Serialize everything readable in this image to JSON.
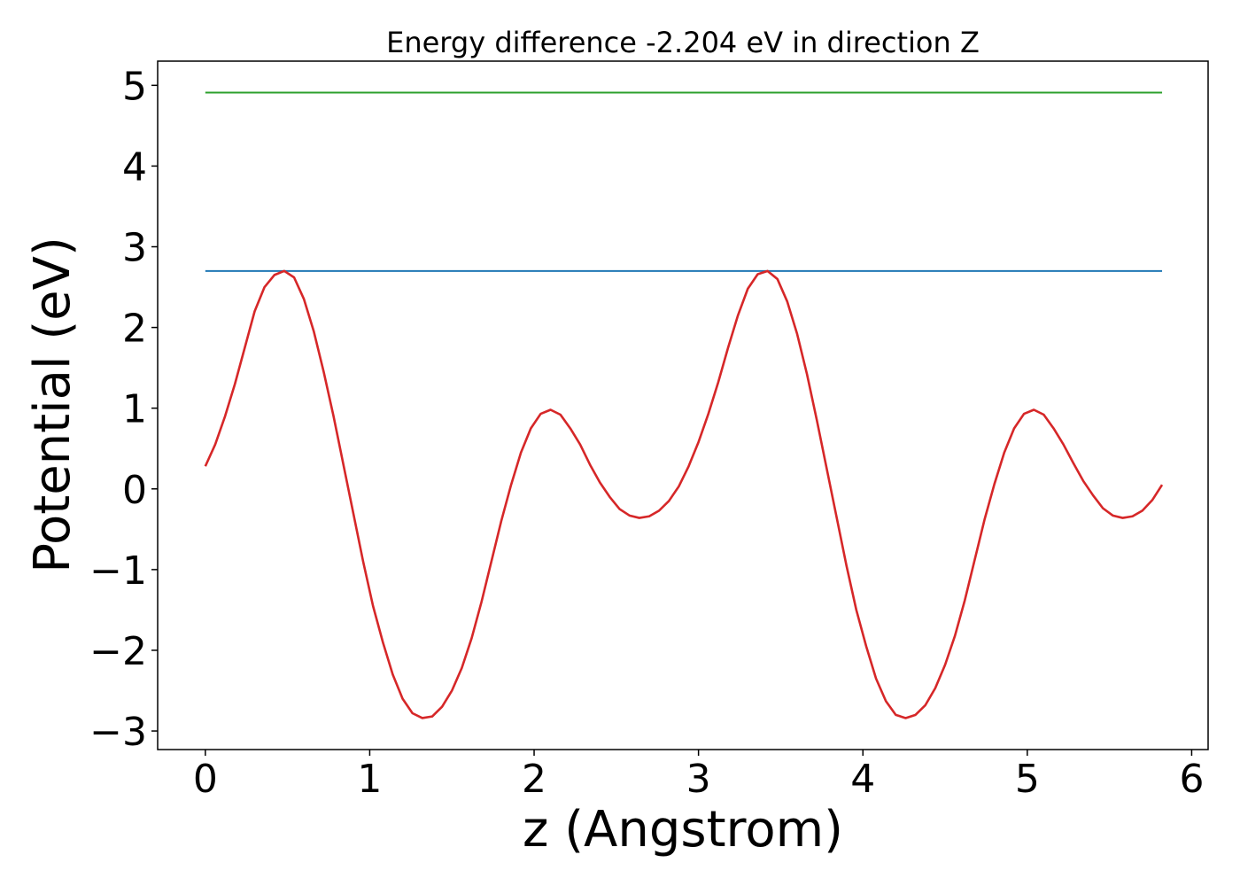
{
  "chart_data": {
    "type": "line",
    "title": "Energy difference -2.204 eV in direction Z",
    "xlabel": "z (Angstrom)",
    "ylabel": "Potential (eV)",
    "xlim": [
      -0.29,
      6.1
    ],
    "ylim": [
      -3.23,
      5.3
    ],
    "xticks": [
      0,
      1,
      2,
      3,
      4,
      5,
      6
    ],
    "xtick_labels": [
      "0",
      "1",
      "2",
      "3",
      "4",
      "5",
      "6"
    ],
    "yticks": [
      -3,
      -2,
      -1,
      0,
      1,
      2,
      3,
      4,
      5
    ],
    "ytick_labels": [
      "−3",
      "−2",
      "−1",
      "0",
      "1",
      "2",
      "3",
      "4",
      "5"
    ],
    "grid": false,
    "series": [
      {
        "color": "#2ca02c",
        "x": [
          0,
          5.82
        ],
        "y": [
          4.91,
          4.91
        ]
      },
      {
        "color": "#1f77b4",
        "x": [
          0,
          5.82
        ],
        "y": [
          2.7,
          2.7
        ]
      },
      {
        "color": "#d62728",
        "x": [
          0.0,
          0.06,
          0.12,
          0.18,
          0.24,
          0.3,
          0.36,
          0.42,
          0.48,
          0.54,
          0.6,
          0.66,
          0.72,
          0.78,
          0.84,
          0.9,
          0.96,
          1.02,
          1.08,
          1.14,
          1.2,
          1.26,
          1.32,
          1.38,
          1.44,
          1.5,
          1.56,
          1.62,
          1.68,
          1.74,
          1.8,
          1.86,
          1.92,
          1.98,
          2.04,
          2.1,
          2.16,
          2.22,
          2.28,
          2.34,
          2.4,
          2.46,
          2.52,
          2.58,
          2.64,
          2.7,
          2.76,
          2.82,
          2.88,
          2.94,
          3.0,
          3.06,
          3.12,
          3.18,
          3.24,
          3.3,
          3.36,
          3.42,
          3.48,
          3.54,
          3.6,
          3.66,
          3.72,
          3.78,
          3.84,
          3.9,
          3.96,
          4.02,
          4.08,
          4.14,
          4.2,
          4.26,
          4.32,
          4.38,
          4.44,
          4.5,
          4.56,
          4.62,
          4.68,
          4.74,
          4.8,
          4.86,
          4.92,
          4.98,
          5.04,
          5.1,
          5.16,
          5.22,
          5.28,
          5.34,
          5.4,
          5.46,
          5.52,
          5.58,
          5.64,
          5.7,
          5.76,
          5.82
        ],
        "y": [
          0.28,
          0.55,
          0.9,
          1.3,
          1.75,
          2.2,
          2.5,
          2.65,
          2.7,
          2.62,
          2.35,
          1.95,
          1.45,
          0.9,
          0.3,
          -0.3,
          -0.9,
          -1.45,
          -1.9,
          -2.3,
          -2.6,
          -2.78,
          -2.84,
          -2.82,
          -2.7,
          -2.5,
          -2.22,
          -1.85,
          -1.4,
          -0.9,
          -0.4,
          0.05,
          0.45,
          0.75,
          0.93,
          0.98,
          0.92,
          0.75,
          0.55,
          0.3,
          0.08,
          -0.1,
          -0.25,
          -0.33,
          -0.36,
          -0.34,
          -0.27,
          -0.15,
          0.03,
          0.28,
          0.58,
          0.93,
          1.32,
          1.75,
          2.15,
          2.48,
          2.66,
          2.7,
          2.6,
          2.32,
          1.92,
          1.42,
          0.85,
          0.25,
          -0.35,
          -0.95,
          -1.5,
          -1.95,
          -2.35,
          -2.63,
          -2.8,
          -2.84,
          -2.8,
          -2.68,
          -2.47,
          -2.18,
          -1.82,
          -1.38,
          -0.88,
          -0.38,
          0.06,
          0.45,
          0.75,
          0.93,
          0.98,
          0.92,
          0.75,
          0.55,
          0.32,
          0.1,
          -0.08,
          -0.24,
          -0.33,
          -0.36,
          -0.34,
          -0.27,
          -0.14,
          0.05
        ]
      }
    ]
  }
}
